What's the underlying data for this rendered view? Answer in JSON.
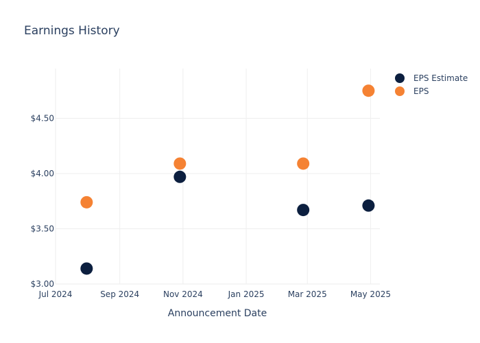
{
  "chart_data": {
    "type": "scatter",
    "title": "Earnings History",
    "xlabel": "Announcement Date",
    "ylabel": "",
    "x_ticks": [
      {
        "date": "2024-07-01",
        "label": "Jul 2024"
      },
      {
        "date": "2024-09-01",
        "label": "Sep 2024"
      },
      {
        "date": "2024-11-01",
        "label": "Nov 2024"
      },
      {
        "date": "2025-01-01",
        "label": "Jan 2025"
      },
      {
        "date": "2025-03-01",
        "label": "Mar 2025"
      },
      {
        "date": "2025-05-01",
        "label": "May 2025"
      }
    ],
    "y_ticks": [
      {
        "value": 3.0,
        "label": "$3.00"
      },
      {
        "value": 3.5,
        "label": "$3.50"
      },
      {
        "value": 4.0,
        "label": "$4.00"
      },
      {
        "value": 4.5,
        "label": "$4.50"
      }
    ],
    "xlim": [
      "2024-07-01",
      "2025-05-10"
    ],
    "ylim": [
      3.0,
      4.95
    ],
    "grid": true,
    "legend_position": "top-right",
    "series": [
      {
        "name": "EPS Estimate",
        "color": "#0c1f3f",
        "points": [
          {
            "x": "2024-07-31",
            "y": 3.14
          },
          {
            "x": "2024-10-29",
            "y": 3.97
          },
          {
            "x": "2025-02-25",
            "y": 3.67
          },
          {
            "x": "2025-04-29",
            "y": 3.71
          }
        ]
      },
      {
        "name": "EPS",
        "color": "#f58233",
        "points": [
          {
            "x": "2024-07-31",
            "y": 3.74
          },
          {
            "x": "2024-10-29",
            "y": 4.09
          },
          {
            "x": "2025-02-25",
            "y": 4.09
          },
          {
            "x": "2025-04-29",
            "y": 4.75
          }
        ]
      }
    ]
  }
}
